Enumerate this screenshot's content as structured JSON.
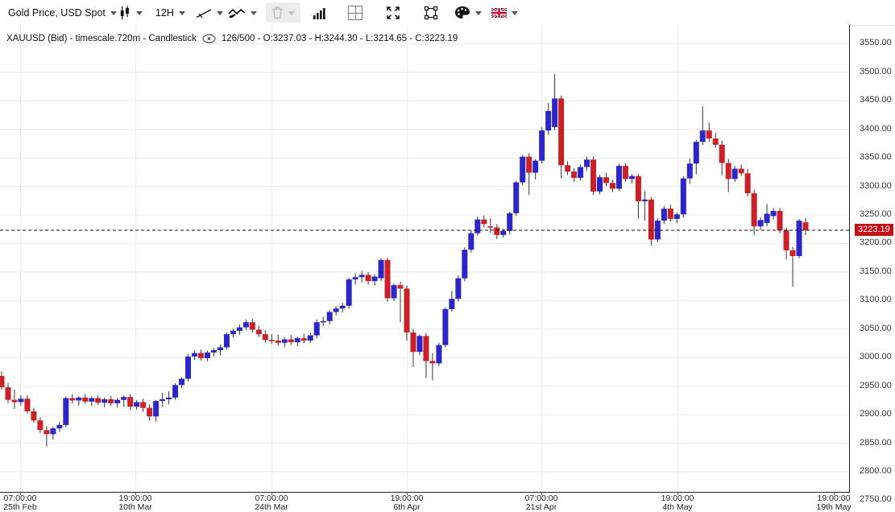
{
  "toolbar": {
    "instrument": "Gold Price, USD Spot",
    "timeframe": "12H",
    "buttons": [
      "instrument-selector",
      "chart-type-candlestick",
      "timeframe-selector",
      "trendline-tool",
      "indicators-tool",
      "delete-drawings-disabled",
      "volume-histogram",
      "grid-layout",
      "fullscreen",
      "frame-resize",
      "theme-palette",
      "language-english"
    ]
  },
  "info": {
    "series": "XAUUSD (Bid) - timescale.720m - Candlestick",
    "stats": "126/500 - O:3237.03 - H:3244.30 - L:3214.65 - C:3223.19"
  },
  "chart_data": {
    "type": "candlestick",
    "symbol": "XAUUSD (Bid)",
    "timeframe": "12H",
    "last_price": 3223.19,
    "last_price_label": "3223.19",
    "colors": {
      "up": "#2c25c8",
      "down": "#cb2027",
      "wick": "#333333",
      "grid": "#ececec",
      "badge": "#c50f14",
      "dashed_line": "#111111"
    },
    "y_axis": {
      "min": 2750,
      "max": 3600,
      "step": 50,
      "side": "right"
    },
    "x_axis": {
      "ticks": [
        {
          "x": 25,
          "time": "07:00:00",
          "date": "25th Feb",
          "grid": true
        },
        {
          "x": 168,
          "time": "19:00:00",
          "date": "10th Mar",
          "grid": true
        },
        {
          "x": 337,
          "time": "07:00:00",
          "date": "24th Mar",
          "grid": true
        },
        {
          "x": 505,
          "time": "19:00:00",
          "date": "6th Apr",
          "grid": true
        },
        {
          "x": 672,
          "time": "07:00:00",
          "date": "21st Apr",
          "grid": true
        },
        {
          "x": 841,
          "time": "19:00:00",
          "date": "4th May",
          "grid": true
        },
        {
          "x": 1035,
          "time": "19:00:00",
          "date": "19th May",
          "grid": false
        }
      ]
    },
    "candles_format": [
      "open",
      "high",
      "low",
      "close"
    ],
    "candles": [
      [
        2968,
        2976,
        2944,
        2948
      ],
      [
        2948,
        2956,
        2920,
        2926
      ],
      [
        2926,
        2944,
        2910,
        2922
      ],
      [
        2922,
        2934,
        2916,
        2928
      ],
      [
        2928,
        2934,
        2902,
        2906
      ],
      [
        2906,
        2912,
        2886,
        2890
      ],
      [
        2890,
        2896,
        2868,
        2873
      ],
      [
        2873,
        2880,
        2844,
        2866
      ],
      [
        2866,
        2879,
        2856,
        2876
      ],
      [
        2876,
        2888,
        2870,
        2882
      ],
      [
        2882,
        2932,
        2878,
        2929
      ],
      [
        2929,
        2936,
        2920,
        2925
      ],
      [
        2925,
        2932,
        2916,
        2930
      ],
      [
        2930,
        2936,
        2919,
        2923
      ],
      [
        2923,
        2932,
        2915,
        2929
      ],
      [
        2929,
        2934,
        2917,
        2921
      ],
      [
        2921,
        2930,
        2913,
        2927
      ],
      [
        2927,
        2933,
        2916,
        2920
      ],
      [
        2920,
        2929,
        2912,
        2926
      ],
      [
        2926,
        2934,
        2914,
        2931
      ],
      [
        2931,
        2936,
        2908,
        2914
      ],
      [
        2914,
        2926,
        2909,
        2922
      ],
      [
        2922,
        2928,
        2905,
        2912
      ],
      [
        2912,
        2918,
        2889,
        2897
      ],
      [
        2897,
        2926,
        2888,
        2924
      ],
      [
        2924,
        2938,
        2914,
        2927
      ],
      [
        2927,
        2941,
        2918,
        2930
      ],
      [
        2930,
        2955,
        2926,
        2952
      ],
      [
        2952,
        2966,
        2946,
        2963
      ],
      [
        2963,
        3006,
        2958,
        3002
      ],
      [
        3002,
        3012,
        2996,
        3008
      ],
      [
        3008,
        3014,
        2995,
        2999
      ],
      [
        2999,
        3012,
        2994,
        3009
      ],
      [
        3009,
        3017,
        3002,
        3013
      ],
      [
        3013,
        3023,
        3004,
        3018
      ],
      [
        3018,
        3044,
        3014,
        3041
      ],
      [
        3041,
        3051,
        3035,
        3047
      ],
      [
        3047,
        3058,
        3040,
        3053
      ],
      [
        3053,
        3067,
        3048,
        3062
      ],
      [
        3062,
        3068,
        3044,
        3049
      ],
      [
        3049,
        3056,
        3036,
        3041
      ],
      [
        3041,
        3048,
        3026,
        3031
      ],
      [
        3031,
        3041,
        3024,
        3030
      ],
      [
        3030,
        3040,
        3021,
        3026
      ],
      [
        3026,
        3036,
        3018,
        3032
      ],
      [
        3032,
        3040,
        3022,
        3027
      ],
      [
        3027,
        3037,
        3020,
        3034
      ],
      [
        3034,
        3042,
        3025,
        3030
      ],
      [
        3030,
        3044,
        3026,
        3039
      ],
      [
        3039,
        3067,
        3034,
        3062
      ],
      [
        3062,
        3072,
        3055,
        3064
      ],
      [
        3064,
        3084,
        3058,
        3080
      ],
      [
        3080,
        3090,
        3074,
        3086
      ],
      [
        3086,
        3096,
        3079,
        3091
      ],
      [
        3091,
        3140,
        3086,
        3137
      ],
      [
        3137,
        3148,
        3128,
        3141
      ],
      [
        3141,
        3152,
        3132,
        3145
      ],
      [
        3145,
        3150,
        3128,
        3134
      ],
      [
        3134,
        3146,
        3126,
        3142
      ],
      [
        3139,
        3174,
        3134,
        3171
      ],
      [
        3171,
        3175,
        3098,
        3104
      ],
      [
        3104,
        3130,
        3099,
        3127
      ],
      [
        3127,
        3133,
        3062,
        3121
      ],
      [
        3121,
        3126,
        3030,
        3044
      ],
      [
        3044,
        3050,
        2984,
        3010
      ],
      [
        3010,
        3041,
        3004,
        3038
      ],
      [
        3038,
        3043,
        2964,
        2994
      ],
      [
        2994,
        3008,
        2960,
        2990
      ],
      [
        2990,
        3026,
        2985,
        3022
      ],
      [
        3022,
        3088,
        3018,
        3085
      ],
      [
        3085,
        3117,
        3080,
        3103
      ],
      [
        3103,
        3144,
        3098,
        3139
      ],
      [
        3139,
        3193,
        3134,
        3189
      ],
      [
        3189,
        3223,
        3184,
        3218
      ],
      [
        3218,
        3247,
        3213,
        3242
      ],
      [
        3242,
        3249,
        3228,
        3234
      ],
      [
        3230,
        3244,
        3218,
        3228
      ],
      [
        3228,
        3234,
        3208,
        3215
      ],
      [
        3215,
        3226,
        3210,
        3222
      ],
      [
        3222,
        3256,
        3216,
        3253
      ],
      [
        3253,
        3310,
        3248,
        3307
      ],
      [
        3307,
        3355,
        3302,
        3352
      ],
      [
        3352,
        3358,
        3285,
        3324
      ],
      [
        3324,
        3348,
        3312,
        3345
      ],
      [
        3345,
        3404,
        3340,
        3398
      ],
      [
        3398,
        3446,
        3390,
        3432
      ],
      [
        3404,
        3497,
        3398,
        3454
      ],
      [
        3454,
        3459,
        3314,
        3337
      ],
      [
        3337,
        3344,
        3320,
        3326
      ],
      [
        3326,
        3332,
        3308,
        3315
      ],
      [
        3315,
        3338,
        3310,
        3334
      ],
      [
        3334,
        3352,
        3328,
        3347
      ],
      [
        3347,
        3352,
        3285,
        3291
      ],
      [
        3291,
        3320,
        3286,
        3316
      ],
      [
        3316,
        3324,
        3300,
        3306
      ],
      [
        3306,
        3312,
        3290,
        3296
      ],
      [
        3296,
        3340,
        3292,
        3336
      ],
      [
        3336,
        3341,
        3308,
        3313
      ],
      [
        3313,
        3322,
        3305,
        3318
      ],
      [
        3318,
        3322,
        3243,
        3274
      ],
      [
        3274,
        3292,
        3240,
        3277
      ],
      [
        3277,
        3281,
        3196,
        3207
      ],
      [
        3207,
        3244,
        3202,
        3240
      ],
      [
        3240,
        3266,
        3234,
        3261
      ],
      [
        3261,
        3268,
        3238,
        3243
      ],
      [
        3243,
        3254,
        3236,
        3251
      ],
      [
        3251,
        3318,
        3246,
        3314
      ],
      [
        3314,
        3349,
        3304,
        3340
      ],
      [
        3340,
        3382,
        3321,
        3378
      ],
      [
        3378,
        3440,
        3372,
        3398
      ],
      [
        3398,
        3412,
        3378,
        3384
      ],
      [
        3384,
        3394,
        3368,
        3373
      ],
      [
        3373,
        3380,
        3319,
        3341
      ],
      [
        3341,
        3348,
        3290,
        3313
      ],
      [
        3313,
        3336,
        3308,
        3331
      ],
      [
        3331,
        3338,
        3318,
        3323
      ],
      [
        3323,
        3330,
        3282,
        3288
      ],
      [
        3288,
        3294,
        3215,
        3230
      ],
      [
        3230,
        3246,
        3224,
        3241
      ],
      [
        3236,
        3269,
        3230,
        3252
      ],
      [
        3248,
        3262,
        3242,
        3257
      ],
      [
        3257,
        3262,
        3218,
        3223
      ],
      [
        3223,
        3228,
        3172,
        3188
      ],
      [
        3188,
        3194,
        3124,
        3178
      ],
      [
        3178,
        3243,
        3174,
        3240
      ],
      [
        3237.03,
        3244.3,
        3214.65,
        3223.19
      ]
    ]
  }
}
